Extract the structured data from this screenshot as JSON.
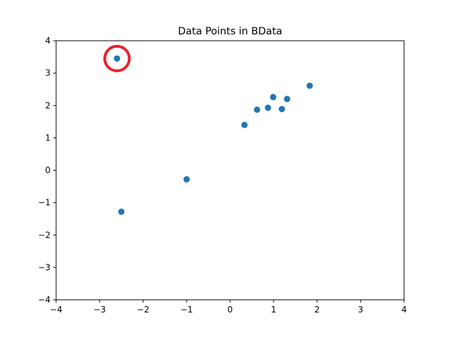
{
  "chart_data": {
    "type": "scatter",
    "title": "Data Points in BData",
    "xlabel": "",
    "ylabel": "",
    "xlim": [
      -4,
      4
    ],
    "ylim": [
      -4,
      4
    ],
    "xticks": [
      -4,
      -3,
      -2,
      -1,
      0,
      1,
      2,
      3,
      4
    ],
    "yticks": [
      -4,
      -3,
      -2,
      -1,
      0,
      1,
      2,
      3,
      4
    ],
    "xtick_labels": [
      "−4",
      "−3",
      "−2",
      "−1",
      "0",
      "1",
      "2",
      "3",
      "4"
    ],
    "ytick_labels": [
      "−4",
      "−3",
      "−2",
      "−1",
      "0",
      "1",
      "2",
      "3",
      "4"
    ],
    "grid": false,
    "series": [
      {
        "color": "#1f77b4",
        "points": [
          {
            "x": -2.6,
            "y": 3.45
          },
          {
            "x": -2.5,
            "y": -1.28
          },
          {
            "x": -1.0,
            "y": -0.28
          },
          {
            "x": 0.33,
            "y": 1.4
          },
          {
            "x": 0.62,
            "y": 1.87
          },
          {
            "x": 0.87,
            "y": 1.93
          },
          {
            "x": 0.99,
            "y": 2.26
          },
          {
            "x": 1.19,
            "y": 1.89
          },
          {
            "x": 1.31,
            "y": 2.2
          },
          {
            "x": 1.83,
            "y": 2.61
          }
        ]
      }
    ],
    "annotations": [
      {
        "type": "circle-highlight",
        "x": -2.6,
        "y": 3.45,
        "color": "#e8232b"
      }
    ]
  }
}
